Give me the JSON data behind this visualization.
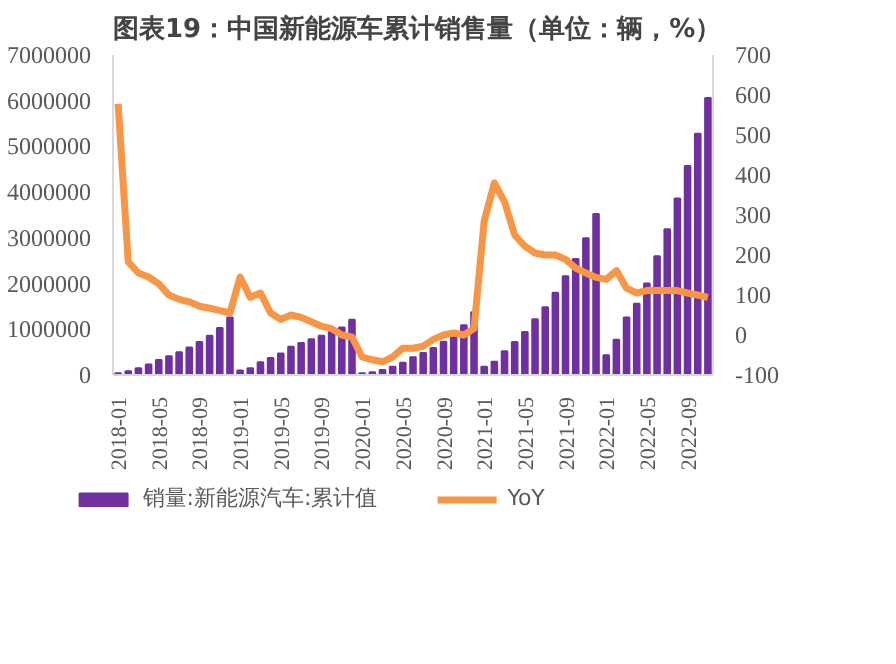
{
  "chart_data": {
    "type": "bar",
    "title": "图表19：中国新能源车累计销售量（单位：辆，%）",
    "categories": [
      "2018-01",
      null,
      null,
      null,
      "2018-05",
      null,
      null,
      null,
      "2018-09",
      null,
      null,
      null,
      "2019-01",
      null,
      null,
      null,
      "2019-05",
      null,
      null,
      null,
      "2019-09",
      null,
      null,
      null,
      "2020-01",
      null,
      null,
      null,
      "2020-05",
      null,
      null,
      null,
      "2020-09",
      null,
      null,
      null,
      "2021-01",
      null,
      null,
      null,
      "2021-05",
      null,
      null,
      null,
      "2021-09",
      null,
      null,
      null,
      "2022-01",
      null,
      null,
      null,
      "2022-05",
      null,
      null,
      null,
      "2022-09",
      null,
      null
    ],
    "series": [
      {
        "name": "销量:新能源汽车:累计值",
        "color": "#7030a0",
        "values": [
          40000,
          80000,
          150000,
          230000,
          330000,
          410000,
          500000,
          600000,
          720000,
          860000,
          1030000,
          1260000,
          100000,
          150000,
          280000,
          370000,
          470000,
          620000,
          700000,
          780000,
          860000,
          940000,
          1040000,
          1210000,
          40000,
          60000,
          110000,
          180000,
          270000,
          390000,
          480000,
          590000,
          730000,
          890000,
          1090000,
          1370000,
          180000,
          290000,
          520000,
          720000,
          940000,
          1220000,
          1480000,
          1800000,
          2160000,
          2540000,
          2990000,
          3520000,
          430000,
          770000,
          1260000,
          1560000,
          2000000,
          2600000,
          3190000,
          3860000,
          4570000,
          5280000,
          6060000
        ]
      },
      {
        "name": "YoY",
        "type": "line",
        "axis": "y2",
        "color": "#f79646",
        "values": [
          578,
          183,
          155,
          145,
          128,
          100,
          89,
          83,
          72,
          67,
          61,
          55,
          145,
          94,
          105,
          55,
          39,
          50,
          44,
          33,
          22,
          16,
          0,
          -5,
          -55,
          -62,
          -67,
          -55,
          -33,
          -33,
          -28,
          -11,
          0,
          5,
          0,
          16,
          285,
          380,
          333,
          250,
          222,
          205,
          200,
          200,
          189,
          167,
          155,
          144,
          139,
          161,
          117,
          105,
          111,
          111,
          111,
          111,
          105,
          100,
          94
        ]
      }
    ],
    "ylim": [
      0,
      7000000
    ],
    "yticks": [
      0,
      1000000,
      2000000,
      3000000,
      4000000,
      5000000,
      6000000,
      7000000
    ],
    "y2lim": [
      -100,
      700
    ],
    "y2ticks": [
      -100,
      0,
      100,
      200,
      300,
      400,
      500,
      600,
      700
    ],
    "legend": "bottom",
    "grid": false
  }
}
